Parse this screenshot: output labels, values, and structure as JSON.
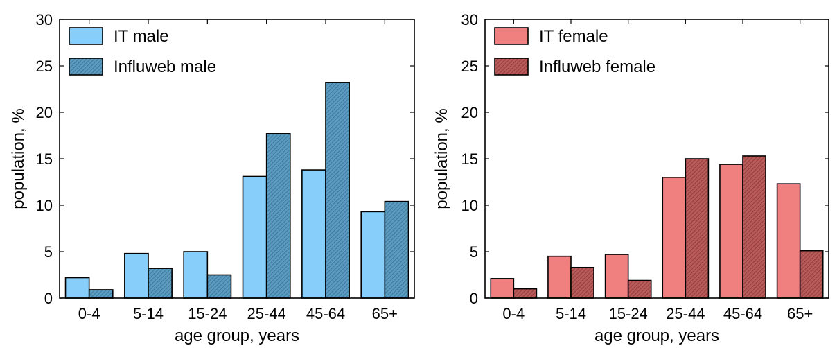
{
  "chart_data": [
    {
      "type": "bar",
      "categories": [
        "0-4",
        "5-14",
        "15-24",
        "25-44",
        "45-64",
        "65+"
      ],
      "series": [
        {
          "name": "IT male",
          "values": [
            2.2,
            4.8,
            5.0,
            13.1,
            13.8,
            9.3
          ],
          "color": "#87cefa",
          "hatch": false
        },
        {
          "name": "Influweb male",
          "values": [
            0.9,
            3.2,
            2.5,
            17.7,
            23.2,
            10.4
          ],
          "color": "#5b9bc0",
          "hatch": true
        }
      ],
      "title": "",
      "xlabel": "age group, years",
      "ylabel": "population, %",
      "ylim": [
        0,
        30
      ],
      "yticks": [
        "0",
        "5",
        "10",
        "15",
        "20",
        "25",
        "30"
      ],
      "legend": "top-left",
      "grid": false
    },
    {
      "type": "bar",
      "categories": [
        "0-4",
        "5-14",
        "15-24",
        "25-44",
        "45-64",
        "65+"
      ],
      "series": [
        {
          "name": "IT female",
          "values": [
            2.1,
            4.5,
            4.7,
            13.0,
            14.4,
            12.3
          ],
          "color": "#f08080",
          "hatch": false
        },
        {
          "name": "Influweb female",
          "values": [
            1.0,
            3.3,
            1.9,
            15.0,
            15.3,
            5.1
          ],
          "color": "#b85a5a",
          "hatch": true
        }
      ],
      "title": "",
      "xlabel": "age group, years",
      "ylabel": "population, %",
      "ylim": [
        0,
        30
      ],
      "yticks": [
        "0",
        "5",
        "10",
        "15",
        "20",
        "25",
        "30"
      ],
      "legend": "top-left",
      "grid": false
    }
  ]
}
